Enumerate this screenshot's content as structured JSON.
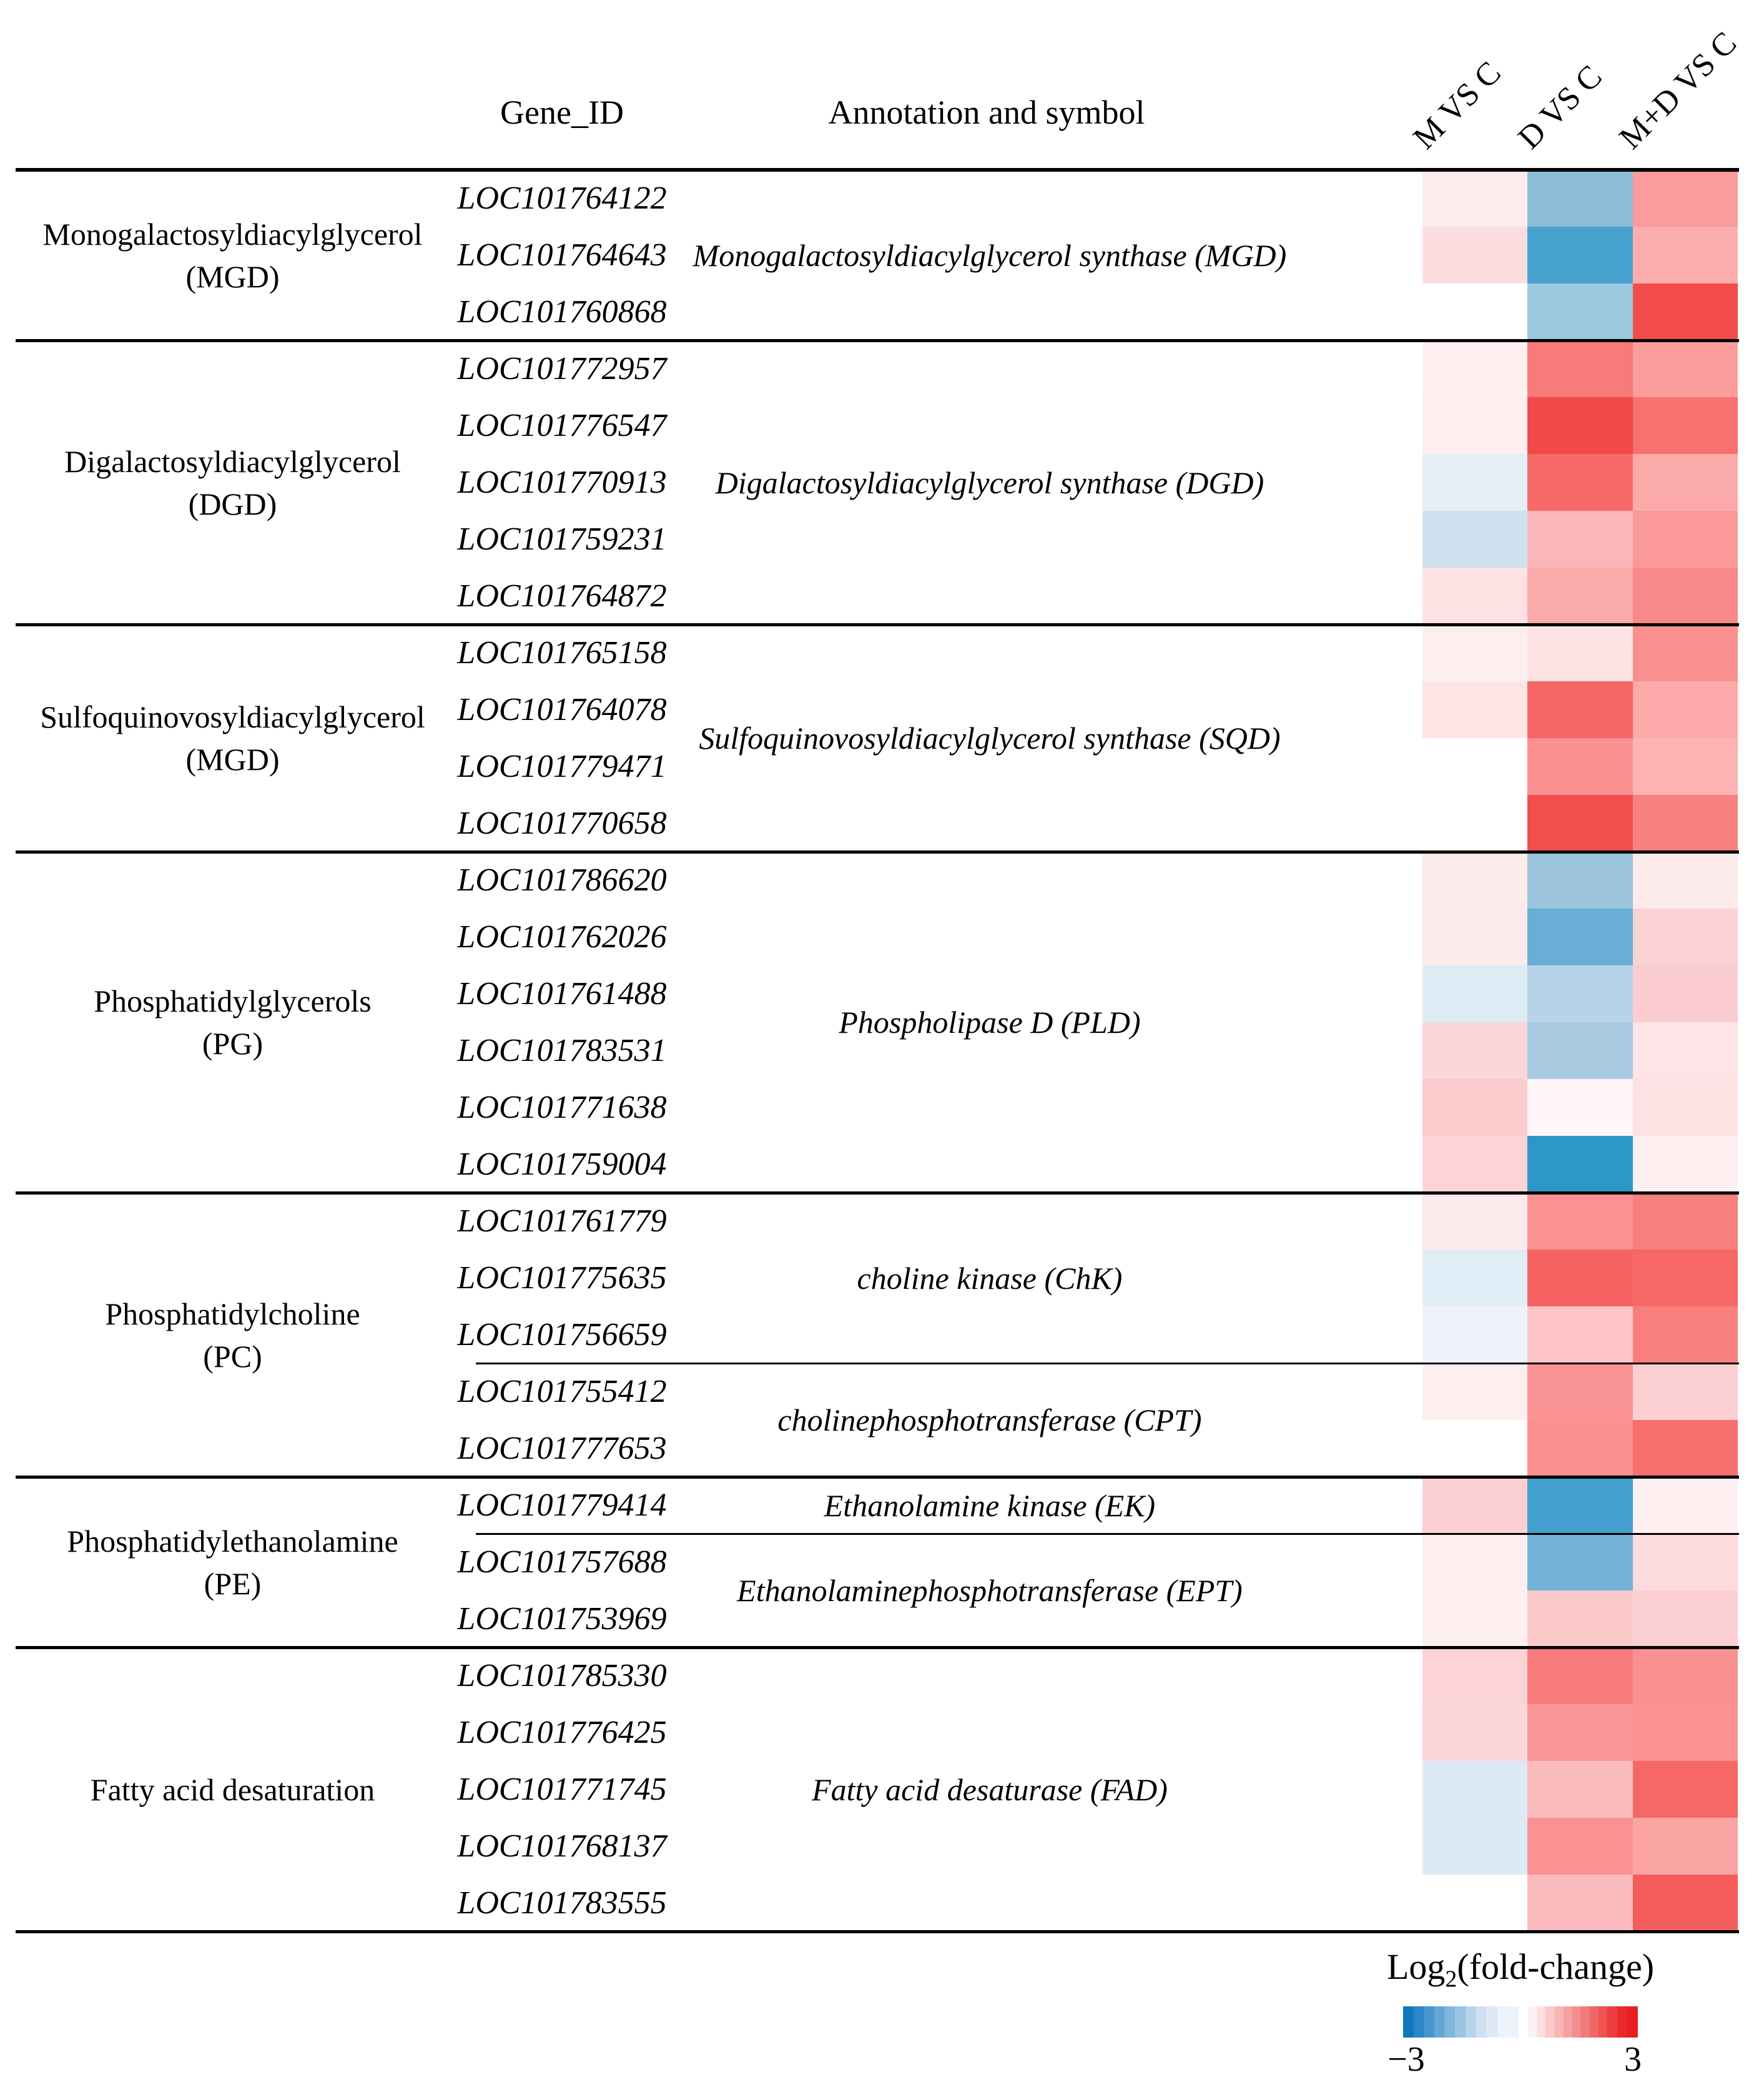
{
  "header": {
    "gene_id": "Gene_ID",
    "annotation": "Annotation and symbol",
    "comparisons": [
      "M VS C",
      "D VS C",
      "M+D VS C"
    ]
  },
  "blocks": [
    {
      "category": "Monogalactosyldiacylglycerol (MGD)",
      "category_lines": [
        "Monogalactosyldiacylglycerol",
        "(MGD)"
      ],
      "annotations": [
        {
          "label": "Monogalactosyldiacylglycerol synthase (MGD)",
          "start": 0,
          "span": 3
        }
      ],
      "thin_after": [],
      "genes": [
        {
          "id": "LOC101764122",
          "colors": [
            "#fdecee",
            "#8cbdd9",
            "#fc9b9b"
          ]
        },
        {
          "id": "LOC101764643",
          "colors": [
            "#fcdee1",
            "#48a2cf",
            "#fcaeae"
          ]
        },
        {
          "id": "LOC101760868",
          "colors": [
            "#ffffff",
            "#9cc8e0",
            "#f24c4c"
          ]
        }
      ]
    },
    {
      "category": "Digalactosyldiacylglycerol (DGD)",
      "category_lines": [
        "Digalactosyldiacylglycerol",
        "(DGD)"
      ],
      "annotations": [
        {
          "label": "Digalactosyldiacylglycerol synthase (DGD)",
          "start": 0,
          "span": 5
        }
      ],
      "thin_after": [],
      "genes": [
        {
          "id": "LOC101772957",
          "colors": [
            "#fef0f1",
            "#f87a7a",
            "#fc9e9e"
          ]
        },
        {
          "id": "LOC101776547",
          "colors": [
            "#fdeff0",
            "#f14949",
            "#f87070"
          ]
        },
        {
          "id": "LOC101770913",
          "colors": [
            "#e3eef7",
            "#f76a6a",
            "#fcabab"
          ]
        },
        {
          "id": "LOC101759231",
          "colors": [
            "#cfe1ef",
            "#fcb5b8",
            "#fb9898"
          ]
        },
        {
          "id": "LOC101764872",
          "colors": [
            "#fde2e4",
            "#fcabab",
            "#f98888"
          ]
        }
      ]
    },
    {
      "category": "Sulfoquinovosyldiacylglycerol (MGD)",
      "category_lines": [
        "Sulfoquinovosyldiacylglycerol",
        "(MGD)"
      ],
      "annotations": [
        {
          "label": "Sulfoquinovosyldiacylglycerol synthase (SQD)",
          "start": 0,
          "span": 4
        }
      ],
      "thin_after": [],
      "genes": [
        {
          "id": "LOC101765158",
          "colors": [
            "#fdeff0",
            "#fde3e4",
            "#fa8f8f"
          ]
        },
        {
          "id": "LOC101764078",
          "colors": [
            "#fde4e5",
            "#f66565",
            "#fcaaaa"
          ]
        },
        {
          "id": "LOC101779471",
          "colors": [
            "#ffffff",
            "#fa9090",
            "#fcb3b3"
          ]
        },
        {
          "id": "LOC101770658",
          "colors": [
            "#ffffff",
            "#f34e4e",
            "#f98080"
          ]
        }
      ]
    },
    {
      "category": "Phosphatidylglycerols (PG)",
      "category_lines": [
        "Phosphatidylglycerols",
        "(PG)"
      ],
      "annotations": [
        {
          "label": "Phospholipase D (PLD)",
          "start": 0,
          "span": 6
        }
      ],
      "thin_after": [],
      "genes": [
        {
          "id": "LOC101786620",
          "colors": [
            "#fdeaeb",
            "#9cc4dd",
            "#fdeaeb"
          ]
        },
        {
          "id": "LOC101762026",
          "colors": [
            "#fdeaeb",
            "#69aed4",
            "#fbd2d4"
          ]
        },
        {
          "id": "LOC101761488",
          "colors": [
            "#ddebf5",
            "#b8d3e7",
            "#fbcdd0"
          ]
        },
        {
          "id": "LOC101783531",
          "colors": [
            "#fcd7da",
            "#a8cbe2",
            "#fde4e6"
          ]
        },
        {
          "id": "LOC101771638",
          "colors": [
            "#fbcbce",
            "#fef5f6",
            "#fde1e3"
          ]
        },
        {
          "id": "LOC101759004",
          "colors": [
            "#fcd4d6",
            "#2e97c9",
            "#fdeff0"
          ]
        }
      ]
    },
    {
      "category": "Phosphatidylcholine (PC)",
      "category_lines": [
        "Phosphatidylcholine",
        "(PC)"
      ],
      "annotations": [
        {
          "label": "choline kinase (ChK)",
          "start": 0,
          "span": 3
        },
        {
          "label": "cholinephosphotransferase (CPT)",
          "start": 3,
          "span": 2
        }
      ],
      "thin_after": [
        3
      ],
      "genes": [
        {
          "id": "LOC101761779",
          "colors": [
            "#fdeaec",
            "#fa9292",
            "#f87f7f"
          ]
        },
        {
          "id": "LOC101775635",
          "colors": [
            "#e0edf6",
            "#f66262",
            "#f76868"
          ]
        },
        {
          "id": "LOC101756659",
          "colors": [
            "#eff3f9",
            "#fcc4c6",
            "#f97f7f"
          ]
        },
        {
          "id": "LOC101755412",
          "colors": [
            "#fdeef0",
            "#fa9494",
            "#fbd0d2"
          ]
        },
        {
          "id": "LOC101777653",
          "colors": [
            "#ffffff",
            "#fa9090",
            "#f76f6f"
          ]
        }
      ]
    },
    {
      "category": "Phosphatidylethanolamine (PE)",
      "category_lines": [
        "Phosphatidylethanolamine",
        "(PE)"
      ],
      "annotations": [
        {
          "label": "Ethanolamine kinase (EK)",
          "start": 0,
          "span": 1
        },
        {
          "label": "Ethanolaminephosphotransferase (EPT)",
          "start": 1,
          "span": 2
        }
      ],
      "thin_after": [
        1
      ],
      "genes": [
        {
          "id": "LOC101779414",
          "colors": [
            "#fcd0d3",
            "#429fd0",
            "#fef0f1"
          ]
        },
        {
          "id": "LOC101757688",
          "colors": [
            "#fdeef0",
            "#74b2d7",
            "#fcdadd"
          ]
        },
        {
          "id": "LOC101753969",
          "colors": [
            "#fdeef0",
            "#fcc9cb",
            "#fbcfd1"
          ]
        }
      ]
    },
    {
      "category": "Fatty acid desaturation",
      "category_lines": [
        "Fatty acid desaturation"
      ],
      "annotations": [
        {
          "label": "Fatty acid desaturase (FAD)",
          "start": 0,
          "span": 5
        }
      ],
      "thin_after": [],
      "genes": [
        {
          "id": "LOC101785330",
          "colors": [
            "#fcd3d6",
            "#f97c7c",
            "#fa9191"
          ]
        },
        {
          "id": "LOC101776425",
          "colors": [
            "#fcd7d9",
            "#fa9696",
            "#fa9292"
          ]
        },
        {
          "id": "LOC101771745",
          "colors": [
            "#ddeaf5",
            "#fbbcbe",
            "#f66868"
          ]
        },
        {
          "id": "LOC101768137",
          "colors": [
            "#ddeaf5",
            "#fa9292",
            "#fba4a4"
          ]
        },
        {
          "id": "LOC101783555",
          "colors": [
            "#ffffff",
            "#fbbcbe",
            "#f55c5c"
          ]
        }
      ]
    }
  ],
  "legend": {
    "title_pre": "Log",
    "title_sub": "2",
    "title_post": "(fold-change)",
    "min": "−3",
    "max": "3"
  },
  "chart_data": {
    "type": "heatmap",
    "value_label": "Log2(fold-change)",
    "vmin": -3,
    "vmax": 3,
    "colorscale": {
      "min_color": "#1077bf",
      "zero_color": "#ffffff",
      "max_color": "#e81e25"
    },
    "columns": [
      "M VS C",
      "D VS C",
      "M+D VS C"
    ],
    "rows": [
      "LOC101764122",
      "LOC101764643",
      "LOC101760868",
      "LOC101772957",
      "LOC101776547",
      "LOC101770913",
      "LOC101759231",
      "LOC101764872",
      "LOC101765158",
      "LOC101764078",
      "LOC101779471",
      "LOC101770658",
      "LOC101786620",
      "LOC101762026",
      "LOC101761488",
      "LOC101783531",
      "LOC101771638",
      "LOC101759004",
      "LOC101761779",
      "LOC101775635",
      "LOC101756659",
      "LOC101755412",
      "LOC101777653",
      "LOC101779414",
      "LOC101757688",
      "LOC101753969",
      "LOC101785330",
      "LOC101776425",
      "LOC101771745",
      "LOC101768137",
      "LOC101783555"
    ],
    "values": [
      [
        0.3,
        -1.5,
        1.3
      ],
      [
        0.4,
        -2.4,
        1.1
      ],
      [
        0.0,
        -1.3,
        2.4
      ],
      [
        0.2,
        1.8,
        1.3
      ],
      [
        0.2,
        2.4,
        1.9
      ],
      [
        -0.4,
        2.0,
        1.1
      ],
      [
        -0.6,
        1.0,
        1.4
      ],
      [
        0.4,
        1.1,
        1.6
      ],
      [
        0.2,
        0.4,
        1.5
      ],
      [
        0.4,
        2.0,
        1.1
      ],
      [
        0.0,
        1.5,
        1.0
      ],
      [
        0.0,
        2.3,
        1.7
      ],
      [
        0.3,
        -1.3,
        0.3
      ],
      [
        0.3,
        -2.0,
        0.6
      ],
      [
        -0.5,
        -0.9,
        0.7
      ],
      [
        0.5,
        -1.1,
        0.4
      ],
      [
        0.7,
        0.1,
        0.4
      ],
      [
        0.6,
        -2.8,
        0.2
      ],
      [
        0.3,
        1.4,
        1.7
      ],
      [
        -0.4,
        2.0,
        2.0
      ],
      [
        -0.2,
        0.8,
        1.7
      ],
      [
        0.2,
        1.4,
        0.6
      ],
      [
        0.0,
        1.5,
        1.9
      ],
      [
        0.6,
        -2.5,
        0.2
      ],
      [
        0.2,
        -1.8,
        0.5
      ],
      [
        0.2,
        0.7,
        0.6
      ],
      [
        0.6,
        1.7,
        1.5
      ],
      [
        0.5,
        1.4,
        1.4
      ],
      [
        -0.5,
        0.9,
        2.0
      ],
      [
        -0.5,
        1.4,
        1.2
      ],
      [
        0.0,
        0.9,
        2.2
      ]
    ]
  }
}
